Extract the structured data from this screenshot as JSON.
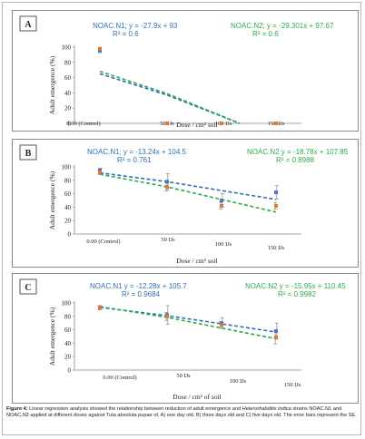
{
  "chart_data": [
    {
      "type": "scatter",
      "panel_letter": "A",
      "ylabel": "Adult emergence (%)",
      "xlabel": "Dose / cm² soil",
      "ylim": [
        0,
        100
      ],
      "yticks": [
        0,
        20,
        40,
        60,
        80,
        100
      ],
      "categories": [
        "0.00 (Control)",
        "50 IJs",
        "100 IJs",
        "150 IJs"
      ],
      "grid": false,
      "series": [
        {
          "name": "NOAC.N1",
          "color": "#2e6fb5",
          "values": [
            95,
            0,
            0,
            0
          ],
          "error": [
            0,
            0,
            0,
            0
          ],
          "equation": "NOAC.N1; y = -27.9x + 93",
          "r2": "R² = 0.6",
          "trend": {
            "slope": -27.9,
            "intercept": 93
          }
        },
        {
          "name": "NOAC.N2",
          "color": "#2eaa4a",
          "values": [
            98,
            0,
            0,
            0
          ],
          "error": [
            0,
            0,
            0,
            0
          ],
          "equation": "NOAC.N2; y = -29.301x + 97.67",
          "r2": "R² = 0.6",
          "trend": {
            "slope": -29.301,
            "intercept": 97.67
          }
        }
      ]
    },
    {
      "type": "scatter",
      "panel_letter": "B",
      "ylabel": "Adult emergence (%)",
      "xlabel": "Dose / cm² soil",
      "ylim": [
        0,
        100
      ],
      "yticks": [
        0,
        20,
        40,
        60,
        80,
        100
      ],
      "categories": [
        "0.00 (Control)",
        "50 IJs",
        "100 IJs",
        "150 IJs"
      ],
      "grid": false,
      "series": [
        {
          "name": "NOAC.N1",
          "color": "#2e6fb5",
          "values": [
            95,
            78,
            50,
            62
          ],
          "error": [
            3,
            12,
            10,
            10
          ],
          "equation": "NOAC.N1; y = -13.24x + 104.5",
          "r2": "R² = 0.761",
          "trend": {
            "slope": -13.24,
            "intercept": 104.5
          }
        },
        {
          "name": "NOAC.N2",
          "color": "#2eaa4a",
          "values": [
            92,
            70,
            42,
            42
          ],
          "error": [
            3,
            6,
            5,
            5
          ],
          "equation": "NOAC.N2 y = -18.78x + 107.85",
          "r2": "R² = 0.8988",
          "trend": {
            "slope": -18.78,
            "intercept": 107.85
          }
        }
      ]
    },
    {
      "type": "scatter",
      "panel_letter": "C",
      "ylabel": "Adult emergence (%)",
      "xlabel": "Dose / cm² of soil",
      "ylim": [
        0,
        100
      ],
      "yticks": [
        0,
        20,
        40,
        60,
        80,
        100
      ],
      "categories": [
        "0.00 (Control)",
        "50 IJs",
        "100 IJs",
        "150 IJs"
      ],
      "grid": false,
      "series": [
        {
          "name": "NOAC.N1",
          "color": "#2e6fb5",
          "values": [
            93,
            82,
            70,
            58
          ],
          "error": [
            3,
            14,
            8,
            12
          ],
          "equation": "NOAC.N1 y = -12.28x + 105.7",
          "r2": "R² = 0.9684",
          "trend": {
            "slope": -12.28,
            "intercept": 105.7
          }
        },
        {
          "name": "NOAC.N2",
          "color": "#2eaa4a",
          "values": [
            93,
            80,
            67,
            49
          ],
          "error": [
            3,
            6,
            5,
            10
          ],
          "equation": "NOAC.N2 y = -15.95x + 110.45",
          "r2": "R² = 0.9982",
          "trend": {
            "slope": -15.95,
            "intercept": 110.45
          }
        }
      ]
    }
  ],
  "caption": {
    "label": "Figure 4:",
    "text_1": " Linear regression analysis showed the relationship between reduction of adult emergence and ",
    "species": "Heterorhabditis indica",
    "text_2": " strains NOAC.N1 and NOAC.N2 applied at different doses against Tuta absoluta pupae of, A) one day old, B) three days old and C) five days old. The error bars represent the SE."
  }
}
